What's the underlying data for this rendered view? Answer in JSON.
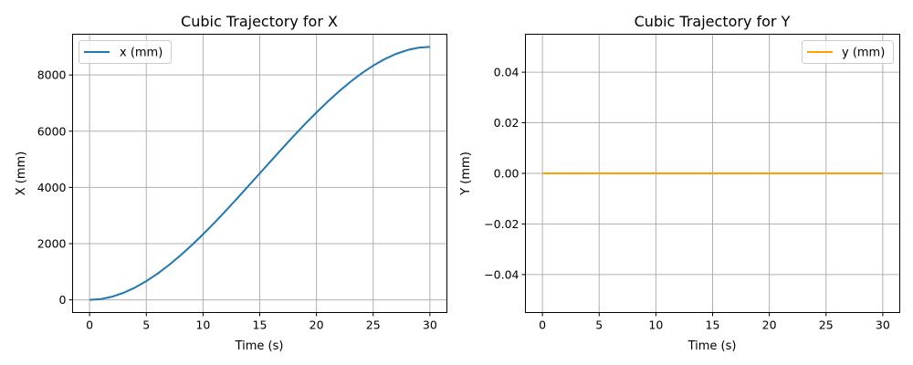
{
  "chart_data": [
    {
      "type": "line",
      "title": "Cubic Trajectory for X",
      "xlabel": "Time (s)",
      "ylabel": "X (mm)",
      "xlim": [
        -1.5,
        31.5
      ],
      "ylim": [
        -450,
        9450
      ],
      "xticks": [
        0,
        5,
        10,
        15,
        20,
        25,
        30
      ],
      "yticks": [
        0,
        2000,
        4000,
        6000,
        8000
      ],
      "xtick_labels": [
        "0",
        "5",
        "10",
        "15",
        "20",
        "25",
        "30"
      ],
      "ytick_labels": [
        "0",
        "2000",
        "4000",
        "6000",
        "8000"
      ],
      "grid": true,
      "legend_position": "top-left",
      "series": [
        {
          "name": "x (mm)",
          "color": "#1f77b4",
          "x": [
            0,
            1,
            2,
            3,
            4,
            5,
            6,
            7,
            8,
            9,
            10,
            11,
            12,
            13,
            14,
            15,
            16,
            17,
            18,
            19,
            20,
            21,
            22,
            23,
            24,
            25,
            26,
            27,
            28,
            29,
            30
          ],
          "y": [
            0,
            29.3,
            114.7,
            252,
            437.3,
            666.7,
            936,
            1241.3,
            1578.7,
            1944,
            2333.3,
            2742.7,
            3168,
            3605.3,
            4050.7,
            4500,
            4949.3,
            5394.7,
            5832,
            6257.3,
            6666.7,
            7056,
            7421.3,
            7758.7,
            8064,
            8333.3,
            8562.7,
            8748,
            8885.3,
            8970.7,
            9000
          ]
        }
      ]
    },
    {
      "type": "line",
      "title": "Cubic Trajectory for Y",
      "xlabel": "Time (s)",
      "ylabel": "Y (mm)",
      "xlim": [
        -1.5,
        31.5
      ],
      "ylim": [
        -0.055,
        0.055
      ],
      "xticks": [
        0,
        5,
        10,
        15,
        20,
        25,
        30
      ],
      "yticks": [
        -0.04,
        -0.02,
        0.0,
        0.02,
        0.04
      ],
      "xtick_labels": [
        "0",
        "5",
        "10",
        "15",
        "20",
        "25",
        "30"
      ],
      "ytick_labels": [
        "−0.04",
        "−0.02",
        "0.00",
        "0.02",
        "0.04"
      ],
      "grid": true,
      "legend_position": "top-right",
      "series": [
        {
          "name": "y (mm)",
          "color": "#ff9f00",
          "x": [
            0,
            30
          ],
          "y": [
            0,
            0
          ]
        }
      ]
    }
  ]
}
